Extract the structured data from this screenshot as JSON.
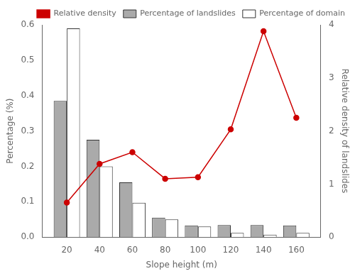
{
  "chart_data": {
    "type": "bar",
    "x": [
      20,
      40,
      60,
      80,
      100,
      120,
      140,
      160
    ],
    "xlabel": "Slope height (m)",
    "ylabel": "Percentage (%)",
    "y2label": "Relative density of landslides",
    "series": [
      {
        "name": "Percentage of landslides",
        "type": "bar",
        "color": "#aaaaaa",
        "values": [
          0.385,
          0.275,
          0.155,
          0.055,
          0.033,
          0.034,
          0.034,
          0.033
        ]
      },
      {
        "name": "Percentage of domain",
        "type": "bar",
        "color": "#ffffff",
        "values": [
          0.59,
          0.2,
          0.097,
          0.05,
          0.03,
          0.012,
          0.007,
          0.012
        ]
      },
      {
        "name": "Relative density",
        "type": "line",
        "color": "#cc0000",
        "marker": "o",
        "axis": "y2",
        "values": [
          0.65,
          1.38,
          1.6,
          1.1,
          1.13,
          2.03,
          3.88,
          2.25
        ]
      }
    ],
    "xlim": [
      5,
      175
    ],
    "xticks": [
      20,
      40,
      60,
      80,
      100,
      120,
      140,
      160
    ],
    "ylim": [
      0,
      0.6
    ],
    "yticks": [
      {
        "value": 0,
        "label": "0.0"
      },
      0.1,
      0.2,
      0.3,
      0.4,
      0.5,
      0.6
    ],
    "y2lim": [
      0,
      4
    ],
    "y2ticks": [
      0,
      1,
      2,
      3,
      4
    ],
    "grid": false,
    "legend": "upper right"
  }
}
